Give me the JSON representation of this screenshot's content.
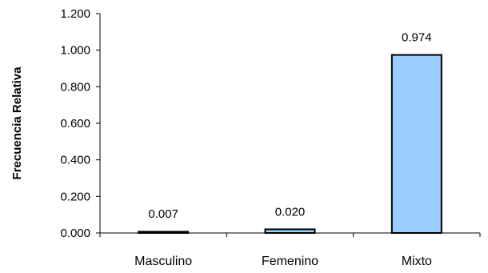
{
  "chart_data": {
    "type": "bar",
    "title": "",
    "xlabel": "",
    "ylabel": "Frecuencia Relativa",
    "categories": [
      "Masculino",
      "Femenino",
      "Mixto"
    ],
    "values": [
      0.007,
      0.02,
      0.974
    ],
    "data_labels": [
      "0.007",
      "0.020",
      "0.974"
    ],
    "ylim": [
      0,
      1.2
    ],
    "y_ticks": [
      0,
      0.2,
      0.4,
      0.6,
      0.8,
      1.0,
      1.2
    ],
    "y_tick_labels": [
      "0.000",
      "0.200",
      "0.400",
      "0.600",
      "0.800",
      "1.000",
      "1.200"
    ],
    "grid": false,
    "legend": "none",
    "bar_color": "#99CCFF",
    "bar_edge_color": "#000000"
  }
}
